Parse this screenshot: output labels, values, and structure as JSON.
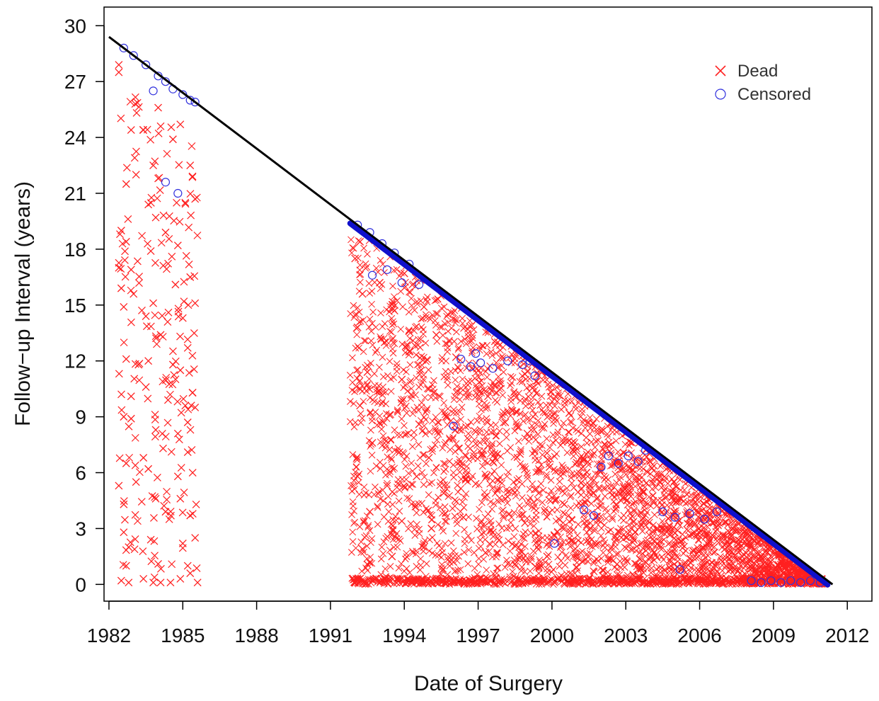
{
  "chart_data": {
    "type": "scatter",
    "title": "",
    "xlabel": "Date of Surgery",
    "ylabel": "Follow−up Interval (years)",
    "xlim": [
      1981.8,
      2013.0
    ],
    "ylim": [
      -0.9,
      31.0
    ],
    "x_ticks": [
      1982,
      1985,
      1988,
      1991,
      1994,
      1997,
      2000,
      2003,
      2006,
      2009,
      2012
    ],
    "y_ticks": [
      0,
      3,
      6,
      9,
      12,
      15,
      18,
      21,
      24,
      27,
      30
    ],
    "x_tick_labels": [
      "1982",
      "1985",
      "1988",
      "1991",
      "1994",
      "1997",
      "2000",
      "2003",
      "2006",
      "2009",
      "2012"
    ],
    "y_tick_labels": [
      "0",
      "3",
      "6",
      "9",
      "12",
      "15",
      "18",
      "21",
      "24",
      "27",
      "30"
    ],
    "legend": {
      "placement": "top-right",
      "entries": [
        {
          "label": "Dead",
          "marker": "x",
          "color": "#ff2020"
        },
        {
          "label": "Censored",
          "marker": "o",
          "color": "#3030dd"
        }
      ]
    },
    "reference_line": {
      "from": [
        1982.0,
        29.4
      ],
      "to": [
        2011.4,
        0.0
      ],
      "color": "#000000"
    },
    "censor_frontier": {
      "from": [
        1991.8,
        19.5
      ],
      "to": [
        2011.2,
        0.1
      ],
      "color": "#1010cc"
    },
    "series": [
      {
        "name": "Dead",
        "marker": "x",
        "color": "#ff2020",
        "points": [
          [
            1982.4,
            27.9
          ],
          [
            1982.4,
            27.5
          ],
          [
            1982.9,
            24.4
          ],
          [
            1983.4,
            24.4
          ],
          [
            1982.7,
            21.5
          ],
          [
            1983.1,
            22.0
          ],
          [
            1982.5,
            19.0
          ],
          [
            1982.7,
            18.4
          ],
          [
            1982.4,
            17.0
          ],
          [
            1982.9,
            16.9
          ],
          [
            1982.5,
            15.9
          ],
          [
            1982.6,
            14.9
          ],
          [
            1983.0,
            15.6
          ],
          [
            1982.7,
            12.1
          ],
          [
            1983.2,
            11.8
          ],
          [
            1982.9,
            10.1
          ],
          [
            1982.6,
            9.0
          ],
          [
            1982.9,
            8.9
          ],
          [
            1983.4,
            6.8
          ],
          [
            1982.7,
            6.5
          ],
          [
            1983.1,
            5.5
          ],
          [
            1982.4,
            5.3
          ],
          [
            1982.6,
            4.3
          ],
          [
            1982.6,
            2.8
          ],
          [
            1982.8,
            2.0
          ],
          [
            1982.7,
            1.0
          ],
          [
            1982.5,
            0.2
          ],
          [
            1982.8,
            0.1
          ],
          [
            1983.4,
            0.3
          ],
          [
            1983.6,
            20.4
          ],
          [
            1983.8,
            22.5
          ],
          [
            1984.0,
            21.8
          ],
          [
            1984.1,
            24.6
          ],
          [
            1984.0,
            25.6
          ],
          [
            1984.6,
            23.9
          ],
          [
            1984.9,
            24.7
          ],
          [
            1985.3,
            22.5
          ],
          [
            1983.7,
            17.9
          ],
          [
            1984.3,
            18.9
          ],
          [
            1983.8,
            15.1
          ],
          [
            1984.1,
            13.4
          ],
          [
            1983.6,
            12.0
          ],
          [
            1984.6,
            11.8
          ],
          [
            1983.5,
            10.6
          ],
          [
            1984.4,
            9.9
          ],
          [
            1983.9,
            8.3
          ],
          [
            1984.2,
            7.3
          ],
          [
            1983.6,
            6.2
          ],
          [
            1983.9,
            4.6
          ],
          [
            1984.3,
            3.9
          ],
          [
            1983.7,
            2.4
          ],
          [
            1984.0,
            1.1
          ],
          [
            1983.8,
            0.1
          ],
          [
            1984.1,
            0.1
          ],
          [
            1984.5,
            0.1
          ],
          [
            1984.9,
            0.3
          ],
          [
            1985.3,
            0.6
          ],
          [
            1985.6,
            0.1
          ],
          [
            1985.1,
            20.5
          ],
          [
            1985.5,
            20.7
          ],
          [
            1984.8,
            18.2
          ],
          [
            1985.3,
            16.5
          ],
          [
            1985.0,
            14.3
          ],
          [
            1985.5,
            15.1
          ],
          [
            1985.2,
            12.7
          ],
          [
            1984.9,
            11.5
          ],
          [
            1985.4,
            10.3
          ],
          [
            1985.1,
            9.6
          ],
          [
            1985.5,
            9.5
          ],
          [
            1984.8,
            8.1
          ],
          [
            1985.2,
            7.1
          ],
          [
            1985.4,
            6.0
          ],
          [
            1984.9,
            4.6
          ],
          [
            1985.3,
            3.7
          ],
          [
            1985.5,
            2.5
          ],
          [
            1985.0,
            2.2
          ],
          [
            1985.2,
            1.0
          ],
          [
            1984.8,
            5.8
          ],
          [
            1985.2,
            8.7
          ],
          [
            1983.5,
            14.4
          ],
          [
            1984.7,
            16.1
          ],
          [
            1983.9,
            19.7
          ],
          [
            1992.2,
            18.4
          ],
          [
            1992.0,
            17.5
          ],
          [
            1993.0,
            16.2
          ],
          [
            1992.3,
            15.6
          ],
          [
            1993.6,
            14.7
          ],
          [
            1994.8,
            14.9
          ],
          [
            1992.1,
            13.8
          ],
          [
            1993.2,
            13.0
          ],
          [
            1994.2,
            12.5
          ],
          [
            1995.3,
            13.4
          ],
          [
            1996.1,
            12.2
          ],
          [
            1992.5,
            11.4
          ],
          [
            1993.9,
            11.0
          ],
          [
            1995.0,
            10.5
          ],
          [
            1996.6,
            10.9
          ],
          [
            1997.4,
            10.1
          ],
          [
            1992.2,
            9.6
          ],
          [
            1993.4,
            9.1
          ],
          [
            1994.6,
            8.6
          ],
          [
            1995.7,
            9.0
          ],
          [
            1996.9,
            8.2
          ],
          [
            1998.1,
            8.7
          ],
          [
            1999.0,
            8.1
          ],
          [
            1992.7,
            7.6
          ],
          [
            1993.8,
            7.1
          ],
          [
            1995.0,
            6.8
          ],
          [
            1996.2,
            7.3
          ],
          [
            1997.6,
            6.6
          ],
          [
            1998.7,
            7.0
          ],
          [
            1999.9,
            6.3
          ],
          [
            2000.8,
            7.6
          ],
          [
            1992.1,
            5.8
          ],
          [
            1993.3,
            5.3
          ],
          [
            1994.5,
            5.8
          ],
          [
            1995.6,
            4.9
          ],
          [
            1996.9,
            5.4
          ],
          [
            1998.1,
            4.6
          ],
          [
            1999.3,
            5.1
          ],
          [
            2000.5,
            4.3
          ],
          [
            2001.7,
            5.6
          ],
          [
            2002.9,
            5.0
          ],
          [
            1992.6,
            3.9
          ],
          [
            1993.9,
            3.4
          ],
          [
            1995.1,
            3.0
          ],
          [
            1996.4,
            3.6
          ],
          [
            1997.6,
            2.8
          ],
          [
            1998.9,
            3.3
          ],
          [
            2000.1,
            2.6
          ],
          [
            2001.4,
            3.1
          ],
          [
            2002.6,
            2.4
          ],
          [
            2003.9,
            3.4
          ],
          [
            2005.1,
            2.9
          ],
          [
            2006.3,
            2.2
          ],
          [
            1992.3,
            1.9
          ],
          [
            1993.5,
            1.5
          ],
          [
            1994.8,
            2.0
          ],
          [
            1996.0,
            1.2
          ],
          [
            1997.3,
            1.7
          ],
          [
            1998.5,
            1.1
          ],
          [
            1999.8,
            1.5
          ],
          [
            2001.0,
            0.9
          ],
          [
            2002.3,
            1.4
          ],
          [
            2003.5,
            0.8
          ],
          [
            2004.8,
            1.3
          ],
          [
            2006.0,
            0.7
          ],
          [
            2007.2,
            1.1
          ],
          [
            2008.5,
            0.6
          ],
          [
            2009.5,
            0.9
          ],
          [
            1997.8,
            13.0
          ],
          [
            1999.6,
            11.4
          ],
          [
            2001.3,
            9.8
          ],
          [
            2003.0,
            8.1
          ],
          [
            2004.5,
            6.5
          ],
          [
            2006.2,
            4.9
          ],
          [
            2007.8,
            3.2
          ],
          [
            2009.3,
            1.7
          ],
          [
            1994.0,
            16.7
          ],
          [
            1995.9,
            14.6
          ],
          [
            1998.9,
            11.3
          ],
          [
            2000.7,
            9.2
          ],
          [
            2002.4,
            7.5
          ],
          [
            2005.2,
            4.6
          ],
          [
            2008.1,
            2.0
          ],
          [
            1992.0,
            0.1
          ],
          [
            1993.3,
            0.1
          ],
          [
            1994.7,
            0.1
          ],
          [
            1996.0,
            0.1
          ],
          [
            1997.4,
            0.1
          ],
          [
            1998.8,
            0.1
          ],
          [
            2000.1,
            0.1
          ],
          [
            2001.5,
            0.1
          ],
          [
            2002.8,
            0.1
          ],
          [
            2004.2,
            0.1
          ],
          [
            2005.5,
            0.1
          ],
          [
            2006.9,
            0.1
          ],
          [
            2008.2,
            0.1
          ]
        ]
      },
      {
        "name": "Censored",
        "marker": "o",
        "color": "#3030dd",
        "points": [
          [
            1982.6,
            28.8
          ],
          [
            1983.0,
            28.4
          ],
          [
            1983.5,
            27.9
          ],
          [
            1984.0,
            27.3
          ],
          [
            1984.3,
            27.0
          ],
          [
            1984.6,
            26.6
          ],
          [
            1985.0,
            26.3
          ],
          [
            1985.3,
            26.0
          ],
          [
            1985.5,
            25.9
          ],
          [
            1984.3,
            21.6
          ],
          [
            1984.8,
            21.0
          ],
          [
            1983.8,
            26.5
          ],
          [
            1992.1,
            19.3
          ],
          [
            1992.6,
            18.9
          ],
          [
            1993.1,
            18.3
          ],
          [
            1993.6,
            17.8
          ],
          [
            1994.2,
            17.2
          ],
          [
            1992.7,
            16.6
          ],
          [
            1993.3,
            16.9
          ],
          [
            1993.9,
            16.2
          ],
          [
            1994.6,
            16.1
          ],
          [
            1996.3,
            12.1
          ],
          [
            1996.7,
            11.7
          ],
          [
            1997.1,
            11.9
          ],
          [
            1997.6,
            11.6
          ],
          [
            1998.2,
            12.0
          ],
          [
            1998.8,
            11.8
          ],
          [
            1999.3,
            11.2
          ],
          [
            1996.9,
            12.4
          ],
          [
            2002.3,
            6.9
          ],
          [
            2002.7,
            6.5
          ],
          [
            2003.1,
            6.9
          ],
          [
            2003.5,
            6.6
          ],
          [
            2003.8,
            7.2
          ],
          [
            2002.0,
            6.3
          ],
          [
            2004.5,
            3.9
          ],
          [
            2005.0,
            3.6
          ],
          [
            2005.6,
            3.8
          ],
          [
            2006.2,
            3.5
          ],
          [
            2006.7,
            3.9
          ],
          [
            2001.3,
            4.0
          ],
          [
            2001.7,
            3.7
          ],
          [
            2008.1,
            0.2
          ],
          [
            2008.5,
            0.1
          ],
          [
            2008.9,
            0.2
          ],
          [
            2009.3,
            0.1
          ],
          [
            2009.7,
            0.2
          ],
          [
            2010.1,
            0.1
          ],
          [
            2010.5,
            0.2
          ],
          [
            2010.9,
            0.1
          ],
          [
            2000.1,
            2.2
          ],
          [
            2005.2,
            0.8
          ],
          [
            1996.0,
            8.5
          ],
          [
            1999.1,
            12.0
          ]
        ]
      }
    ]
  }
}
